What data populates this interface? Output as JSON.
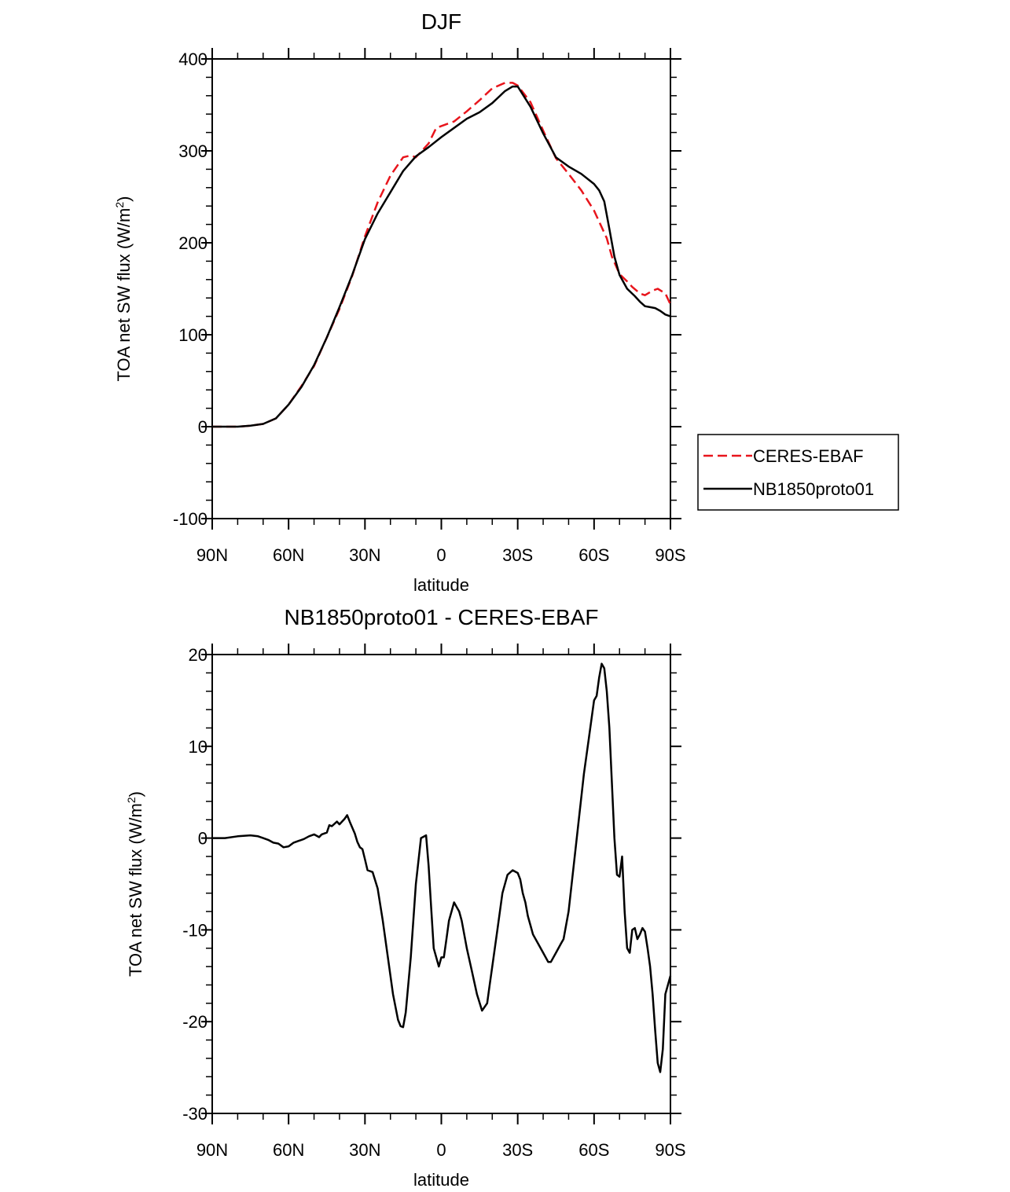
{
  "chart_data": [
    {
      "type": "line",
      "title": "DJF",
      "xlabel": "latitude",
      "ylabel_main": "TOA net SW flux (W/m",
      "ylabel_sup": "2",
      "ylabel_close": ")",
      "xlim": [
        90,
        -90
      ],
      "ylim": [
        -100,
        400
      ],
      "x_ticks": [
        90,
        60,
        30,
        0,
        -30,
        -60,
        -90
      ],
      "x_tick_labels": [
        "90N",
        "60N",
        "30N",
        "0",
        "30S",
        "60S",
        "90S"
      ],
      "y_ticks": [
        -100,
        0,
        100,
        200,
        300,
        400
      ],
      "y_tick_labels": [
        "-100",
        "0",
        "100",
        "200",
        "300",
        "400"
      ],
      "legend": {
        "placement": "right",
        "entries": [
          {
            "label": "CERES-EBAF",
            "color": "#e8151c",
            "dash": "dashed"
          },
          {
            "label": "NB1850proto01",
            "color": "#000000",
            "dash": "solid"
          }
        ]
      },
      "series": [
        {
          "name": "CERES-EBAF",
          "color": "#e8151c",
          "dash": "dashed",
          "x": [
            90,
            85,
            80,
            75,
            70,
            65,
            60,
            55,
            50,
            45,
            40,
            35,
            30,
            25,
            20,
            15,
            12,
            10,
            5,
            2,
            0,
            -5,
            -10,
            -15,
            -20,
            -25,
            -28,
            -30,
            -35,
            -40,
            -45,
            -50,
            -55,
            -60,
            -65,
            -67,
            -70,
            -73,
            -75,
            -78,
            -80,
            -83,
            -85,
            -88,
            -90
          ],
          "y": [
            0,
            0,
            0,
            1,
            3,
            9,
            24,
            44,
            66,
            97,
            128,
            164,
            207,
            244,
            273,
            293,
            295,
            293,
            308,
            325,
            327,
            332,
            343,
            355,
            368,
            374,
            374,
            371,
            353,
            322,
            292,
            275,
            257,
            235,
            205,
            185,
            166,
            158,
            152,
            145,
            143,
            148,
            150,
            145,
            133
          ]
        },
        {
          "name": "NB1850proto01",
          "color": "#000000",
          "dash": "solid",
          "x": [
            90,
            85,
            80,
            75,
            70,
            65,
            60,
            55,
            50,
            45,
            40,
            35,
            30,
            25,
            20,
            15,
            10,
            5,
            0,
            -5,
            -10,
            -15,
            -20,
            -25,
            -28,
            -30,
            -35,
            -40,
            -45,
            -50,
            -55,
            -60,
            -62,
            -64,
            -66,
            -68,
            -70,
            -73,
            -76,
            -78,
            -80,
            -82,
            -84,
            -86,
            -88,
            -90
          ],
          "y": [
            0,
            0,
            0,
            1,
            3,
            9,
            24,
            43,
            67,
            97,
            130,
            165,
            204,
            232,
            255,
            278,
            294,
            304,
            315,
            325,
            335,
            342,
            352,
            365,
            370,
            370,
            348,
            319,
            293,
            283,
            275,
            264,
            257,
            245,
            215,
            185,
            165,
            150,
            142,
            136,
            131,
            130,
            129,
            126,
            122,
            120
          ]
        }
      ]
    },
    {
      "type": "line",
      "title": "NB1850proto01 - CERES-EBAF",
      "xlabel": "latitude",
      "ylabel_main": "TOA net SW flux (W/m",
      "ylabel_sup": "2",
      "ylabel_close": ")",
      "xlim": [
        90,
        -90
      ],
      "ylim": [
        -30,
        20
      ],
      "x_ticks": [
        90,
        60,
        30,
        0,
        -30,
        -60,
        -90
      ],
      "x_tick_labels": [
        "90N",
        "60N",
        "30N",
        "0",
        "30S",
        "60S",
        "90S"
      ],
      "y_ticks": [
        -30,
        -20,
        -10,
        0,
        10,
        20
      ],
      "y_tick_labels": [
        "-30",
        "-20",
        "-10",
        "0",
        "10",
        "20"
      ],
      "series": [
        {
          "name": "NB1850proto01 - CERES-EBAF",
          "color": "#000000",
          "dash": "solid",
          "x": [
            90,
            85,
            80,
            75,
            72,
            70,
            68,
            66,
            64,
            62,
            60,
            58,
            56,
            54,
            52,
            50,
            48,
            47,
            45,
            44,
            43,
            41,
            40,
            38,
            37,
            36,
            34,
            33,
            32,
            31,
            30,
            29,
            27,
            25,
            23,
            21,
            19,
            17,
            16,
            15,
            14,
            12,
            10,
            8,
            6,
            5,
            4,
            3,
            1,
            0,
            -1,
            -2,
            -3,
            -4,
            -5,
            -6,
            -7,
            -8,
            -10,
            -12,
            -14,
            -16,
            -18,
            -19,
            -20,
            -22,
            -24,
            -26,
            -28,
            -30,
            -31,
            -32,
            -33,
            -34,
            -35,
            -36,
            -38,
            -40,
            -42,
            -43,
            -45,
            -47,
            -48,
            -50,
            -52,
            -54,
            -56,
            -58,
            -60,
            -61,
            -62,
            -63,
            -64,
            -65,
            -66,
            -67,
            -68,
            -69,
            -70,
            -71,
            -72,
            -73,
            -74,
            -75,
            -76,
            -77,
            -78,
            -79,
            -80,
            -81,
            -82,
            -83,
            -84,
            -85,
            -86,
            -87,
            -88,
            -89,
            -90
          ],
          "y": [
            0,
            0,
            0.2,
            0.3,
            0.2,
            0,
            -0.2,
            -0.5,
            -0.6,
            -1,
            -0.9,
            -0.5,
            -0.3,
            -0.1,
            0.2,
            0.4,
            0.1,
            0.4,
            0.6,
            1.4,
            1.3,
            1.8,
            1.5,
            2.1,
            2.5,
            1.8,
            0.5,
            -0.4,
            -1.0,
            -1.2,
            -2.3,
            -3.5,
            -3.7,
            -5.5,
            -9,
            -13,
            -17,
            -19.8,
            -20.5,
            -20.6,
            -19,
            -13,
            -5,
            0,
            0.3,
            -3,
            -7.5,
            -12,
            -14,
            -13,
            -13,
            -11,
            -9,
            -8,
            -7,
            -7.5,
            -8,
            -9,
            -12,
            -14.5,
            -17,
            -18.8,
            -18,
            -16,
            -14,
            -10,
            -6,
            -4,
            -3.5,
            -3.8,
            -4.5,
            -6,
            -7,
            -8.5,
            -9.5,
            -10.5,
            -11.5,
            -12.5,
            -13.5,
            -13.5,
            -12.5,
            -11.5,
            -11,
            -8,
            -3,
            2,
            7,
            11,
            15,
            15.5,
            17.5,
            19,
            18.5,
            16,
            12,
            6,
            0,
            -4,
            -4.2,
            -2,
            -8,
            -12,
            -12.5,
            -10,
            -9.8,
            -11,
            -10.5,
            -9.8,
            -10.2,
            -12,
            -14,
            -17,
            -21,
            -24.5,
            -25.5,
            -23,
            -17,
            -16,
            -15
          ]
        }
      ]
    }
  ]
}
